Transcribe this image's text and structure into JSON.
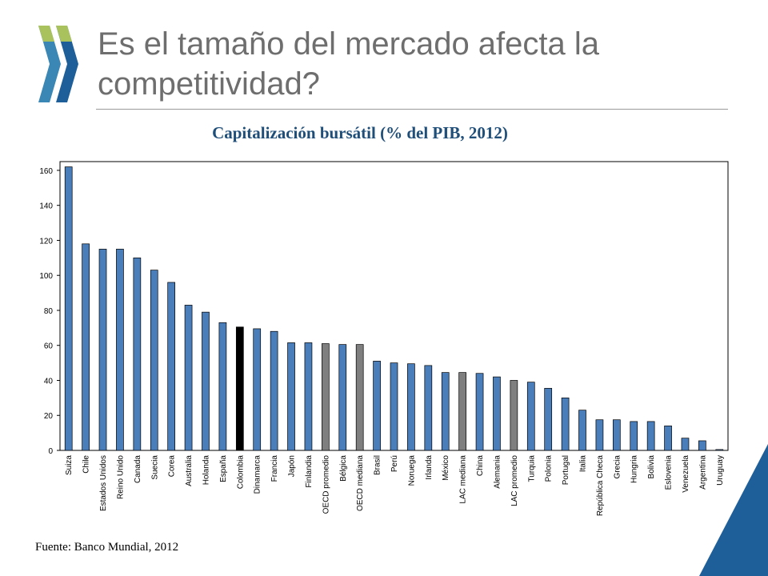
{
  "slide": {
    "title": "Es el tamaño del mercado afecta la competitividad?",
    "source": "Fuente: Banco Mundial, 2012"
  },
  "colors": {
    "bar_default": "#4a7ebb",
    "bar_highlight": "#000000",
    "bar_reference": "#7f7f7f",
    "title_text": "#6e6e6e",
    "chart_title_text": "#1f4e79",
    "accent_corner": "#1f5f99"
  },
  "icons": [
    "oecd-logo-chevrons-icon",
    "corner-triangle-decoration"
  ],
  "chart_data": {
    "type": "bar",
    "title": "Capitalización bursátil (% del PIB, 2012)",
    "xlabel": "",
    "ylabel": "",
    "ylim": [
      0,
      160
    ],
    "yticks": [
      0,
      20,
      40,
      60,
      80,
      100,
      120,
      140,
      160
    ],
    "grid": false,
    "categories": [
      "Suiza",
      "Chile",
      "Estados Unidos",
      "Reino Unido",
      "Canada",
      "Suecia",
      "Corea",
      "Australia",
      "Holanda",
      "España",
      "Colombia",
      "Dinamarca",
      "Francia",
      "Japón",
      "Finlandia",
      "OECD promedio",
      "Bélgica",
      "OECD mediana",
      "Brasil",
      "Perú",
      "Noruega",
      "Irlanda",
      "México",
      "LAC mediana",
      "China",
      "Alemania",
      "LAC promedio",
      "Turquia",
      "Polonia",
      "Portugal",
      "Italia",
      "República Checa",
      "Grecia",
      "Hungria",
      "Bolivia",
      "Eslovenia",
      "Venezuela",
      "Argentina",
      "Uruguay"
    ],
    "values": [
      162,
      118,
      115,
      115,
      110,
      103,
      96,
      83,
      79,
      73,
      70.5,
      69.5,
      68,
      61.5,
      61.5,
      61,
      60.5,
      60.5,
      51,
      50,
      49.5,
      48.5,
      44.5,
      44.5,
      44,
      42,
      40,
      39,
      35.5,
      30,
      23,
      17.5,
      17.5,
      16.5,
      16.5,
      14,
      7,
      5.5,
      0.5
    ],
    "highlight": {
      "Colombia": "bar_highlight",
      "OECD promedio": "bar_reference",
      "OECD mediana": "bar_reference",
      "LAC mediana": "bar_reference",
      "LAC promedio": "bar_reference"
    }
  }
}
